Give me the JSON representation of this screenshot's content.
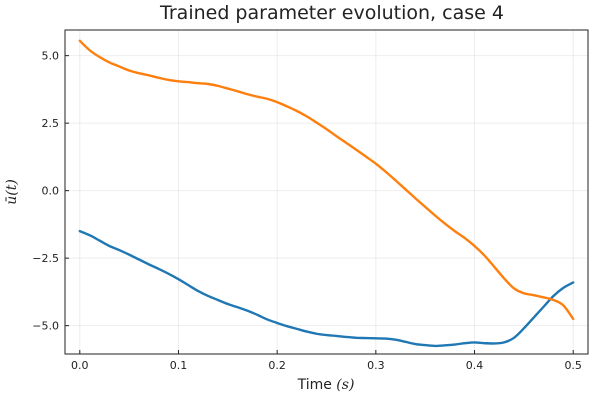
{
  "chart_data": {
    "type": "line",
    "title": "Trained parameter evolution, case 4",
    "xlabel_text": "Time ",
    "xlabel_math": "(s)",
    "ylabel_math": "ū(t)",
    "xlim": [
      -0.015,
      0.515
    ],
    "ylim": [
      -6.05,
      5.95
    ],
    "xticks": [
      0.0,
      0.1,
      0.2,
      0.3,
      0.4,
      0.5
    ],
    "xtick_labels": [
      "0.0",
      "0.1",
      "0.2",
      "0.3",
      "0.4",
      "0.5"
    ],
    "yticks": [
      -5.0,
      -2.5,
      0.0,
      2.5,
      5.0
    ],
    "ytick_labels": [
      "−5.0",
      "−2.5",
      "0.0",
      "2.5",
      "5.0"
    ],
    "grid": true,
    "legend": "none",
    "series": [
      {
        "color": "#1f77b4",
        "x": [
          0.0,
          0.01,
          0.02,
          0.03,
          0.04,
          0.05,
          0.06,
          0.07,
          0.08,
          0.09,
          0.1,
          0.11,
          0.12,
          0.13,
          0.14,
          0.15,
          0.16,
          0.17,
          0.18,
          0.19,
          0.2,
          0.21,
          0.22,
          0.23,
          0.24,
          0.25,
          0.26,
          0.27,
          0.28,
          0.29,
          0.3,
          0.31,
          0.32,
          0.33,
          0.34,
          0.35,
          0.36,
          0.37,
          0.38,
          0.39,
          0.4,
          0.41,
          0.42,
          0.43,
          0.44,
          0.45,
          0.46,
          0.47,
          0.48,
          0.49,
          0.5
        ],
        "y": [
          -1.5,
          -1.65,
          -1.85,
          -2.05,
          -2.2,
          -2.37,
          -2.55,
          -2.73,
          -2.9,
          -3.08,
          -3.28,
          -3.5,
          -3.72,
          -3.9,
          -4.05,
          -4.2,
          -4.32,
          -4.45,
          -4.6,
          -4.77,
          -4.9,
          -5.02,
          -5.12,
          -5.22,
          -5.3,
          -5.35,
          -5.38,
          -5.42,
          -5.45,
          -5.46,
          -5.47,
          -5.48,
          -5.52,
          -5.6,
          -5.68,
          -5.72,
          -5.75,
          -5.73,
          -5.7,
          -5.65,
          -5.62,
          -5.65,
          -5.66,
          -5.62,
          -5.45,
          -5.1,
          -4.7,
          -4.3,
          -3.9,
          -3.6,
          -3.4
        ]
      },
      {
        "color": "#ff7f0e",
        "x": [
          0.0,
          0.01,
          0.02,
          0.03,
          0.04,
          0.05,
          0.06,
          0.07,
          0.08,
          0.09,
          0.1,
          0.11,
          0.12,
          0.13,
          0.14,
          0.15,
          0.16,
          0.17,
          0.18,
          0.19,
          0.2,
          0.21,
          0.22,
          0.23,
          0.24,
          0.25,
          0.26,
          0.27,
          0.28,
          0.29,
          0.3,
          0.31,
          0.32,
          0.33,
          0.34,
          0.35,
          0.36,
          0.37,
          0.38,
          0.39,
          0.4,
          0.41,
          0.42,
          0.43,
          0.44,
          0.45,
          0.46,
          0.47,
          0.48,
          0.49,
          0.5
        ],
        "y": [
          5.55,
          5.2,
          4.95,
          4.75,
          4.6,
          4.45,
          4.35,
          4.27,
          4.18,
          4.1,
          4.05,
          4.02,
          3.98,
          3.95,
          3.88,
          3.78,
          3.68,
          3.57,
          3.48,
          3.4,
          3.28,
          3.12,
          2.95,
          2.75,
          2.52,
          2.28,
          2.02,
          1.77,
          1.52,
          1.26,
          1.0,
          0.7,
          0.38,
          0.05,
          -0.28,
          -0.6,
          -0.92,
          -1.22,
          -1.5,
          -1.75,
          -2.05,
          -2.4,
          -2.82,
          -3.25,
          -3.62,
          -3.8,
          -3.87,
          -3.95,
          -4.05,
          -4.25,
          -4.75
        ]
      }
    ]
  }
}
